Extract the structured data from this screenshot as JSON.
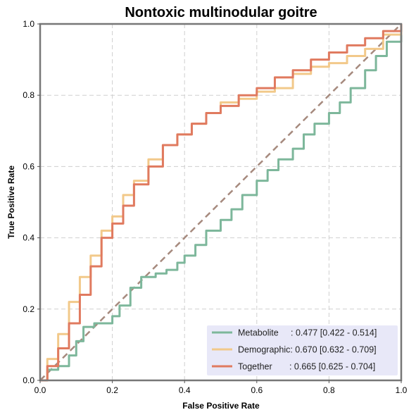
{
  "chart_data": {
    "type": "line",
    "title": "Nontoxic multinodular goitre",
    "xlabel": "False Positive Rate",
    "ylabel": "True Positive Rate",
    "xlim": [
      0,
      1
    ],
    "ylim": [
      0,
      1
    ],
    "x_ticks": [
      "0.0",
      "0.2",
      "0.4",
      "0.6",
      "0.8",
      "1.0"
    ],
    "y_ticks": [
      "0.0",
      "0.2",
      "0.4",
      "0.6",
      "0.8",
      "1.0"
    ],
    "grid": true,
    "legend_position": "lower-right",
    "diagonal": {
      "from": [
        0,
        0
      ],
      "to": [
        1,
        1
      ],
      "color": "#A68A7E",
      "style": "dashed"
    },
    "series": [
      {
        "name": "Metabolite",
        "label": "Metabolite     : 0.477 [0.422 - 0.514]",
        "color": "#7DB79B",
        "points": [
          [
            0,
            0
          ],
          [
            0.02,
            0.03
          ],
          [
            0.05,
            0.04
          ],
          [
            0.08,
            0.07
          ],
          [
            0.1,
            0.11
          ],
          [
            0.12,
            0.15
          ],
          [
            0.15,
            0.16
          ],
          [
            0.18,
            0.16
          ],
          [
            0.2,
            0.18
          ],
          [
            0.22,
            0.21
          ],
          [
            0.25,
            0.26
          ],
          [
            0.28,
            0.29
          ],
          [
            0.32,
            0.3
          ],
          [
            0.35,
            0.31
          ],
          [
            0.38,
            0.33
          ],
          [
            0.4,
            0.35
          ],
          [
            0.43,
            0.38
          ],
          [
            0.46,
            0.42
          ],
          [
            0.5,
            0.45
          ],
          [
            0.53,
            0.48
          ],
          [
            0.56,
            0.52
          ],
          [
            0.6,
            0.56
          ],
          [
            0.63,
            0.59
          ],
          [
            0.66,
            0.62
          ],
          [
            0.7,
            0.65
          ],
          [
            0.73,
            0.69
          ],
          [
            0.76,
            0.72
          ],
          [
            0.8,
            0.75
          ],
          [
            0.83,
            0.78
          ],
          [
            0.86,
            0.82
          ],
          [
            0.9,
            0.87
          ],
          [
            0.93,
            0.91
          ],
          [
            0.96,
            0.95
          ],
          [
            1,
            1
          ]
        ]
      },
      {
        "name": "Demographic",
        "label": "Demographic: 0.670 [0.632 - 0.709]",
        "color": "#F2C98A",
        "points": [
          [
            0,
            0
          ],
          [
            0.02,
            0.06
          ],
          [
            0.05,
            0.13
          ],
          [
            0.08,
            0.22
          ],
          [
            0.11,
            0.29
          ],
          [
            0.14,
            0.35
          ],
          [
            0.17,
            0.42
          ],
          [
            0.2,
            0.46
          ],
          [
            0.23,
            0.52
          ],
          [
            0.26,
            0.56
          ],
          [
            0.3,
            0.62
          ],
          [
            0.34,
            0.66
          ],
          [
            0.38,
            0.69
          ],
          [
            0.42,
            0.72
          ],
          [
            0.46,
            0.75
          ],
          [
            0.5,
            0.78
          ],
          [
            0.55,
            0.79
          ],
          [
            0.6,
            0.81
          ],
          [
            0.65,
            0.82
          ],
          [
            0.7,
            0.86
          ],
          [
            0.75,
            0.88
          ],
          [
            0.8,
            0.89
          ],
          [
            0.85,
            0.91
          ],
          [
            0.9,
            0.93
          ],
          [
            0.95,
            0.97
          ],
          [
            1,
            1
          ]
        ]
      },
      {
        "name": "Together",
        "label": "Together       : 0.665 [0.625 - 0.704]",
        "color": "#E07A5F",
        "points": [
          [
            0,
            0
          ],
          [
            0.02,
            0.04
          ],
          [
            0.05,
            0.09
          ],
          [
            0.08,
            0.16
          ],
          [
            0.11,
            0.24
          ],
          [
            0.14,
            0.32
          ],
          [
            0.17,
            0.4
          ],
          [
            0.2,
            0.44
          ],
          [
            0.23,
            0.49
          ],
          [
            0.26,
            0.55
          ],
          [
            0.3,
            0.6
          ],
          [
            0.34,
            0.66
          ],
          [
            0.38,
            0.69
          ],
          [
            0.42,
            0.72
          ],
          [
            0.46,
            0.75
          ],
          [
            0.5,
            0.77
          ],
          [
            0.55,
            0.8
          ],
          [
            0.6,
            0.82
          ],
          [
            0.65,
            0.85
          ],
          [
            0.7,
            0.87
          ],
          [
            0.75,
            0.9
          ],
          [
            0.8,
            0.92
          ],
          [
            0.85,
            0.94
          ],
          [
            0.9,
            0.96
          ],
          [
            0.95,
            0.98
          ],
          [
            1,
            1
          ]
        ]
      }
    ],
    "legend_bg": "#E8E8F8"
  }
}
